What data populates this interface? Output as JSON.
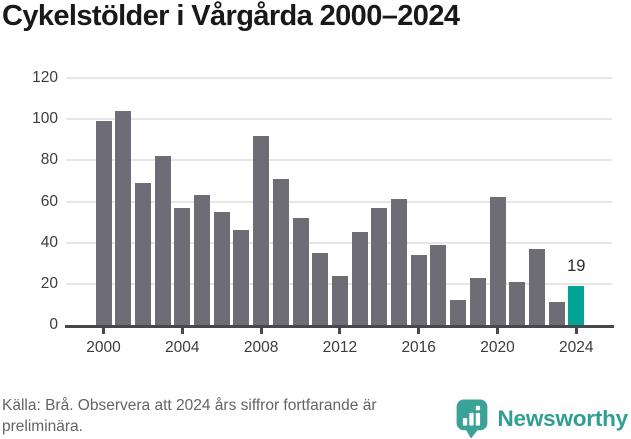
{
  "title": "Cykelstölder i Vårgårda 2000–2024",
  "chart_data": {
    "type": "bar",
    "title": "Cykelstölder i Vårgårda 2000–2024",
    "x": [
      2000,
      2001,
      2002,
      2003,
      2004,
      2005,
      2006,
      2007,
      2008,
      2009,
      2010,
      2011,
      2012,
      2013,
      2014,
      2015,
      2016,
      2017,
      2018,
      2019,
      2020,
      2021,
      2022,
      2023,
      2024
    ],
    "values": [
      99,
      104,
      69,
      82,
      57,
      63,
      55,
      46,
      92,
      71,
      52,
      35,
      24,
      45,
      57,
      61,
      34,
      39,
      12,
      23,
      62,
      21,
      37,
      11,
      19
    ],
    "ylim": [
      0,
      120
    ],
    "yticks": [
      0,
      20,
      40,
      60,
      80,
      100,
      120
    ],
    "xticks": [
      2000,
      2004,
      2008,
      2012,
      2016,
      2020,
      2024
    ],
    "grid": true,
    "legend": "none",
    "bar_color": "#6e6c74",
    "highlight_color": "#00a496",
    "highlight_index": 24,
    "annotations": [
      {
        "index": 24,
        "text": "19"
      }
    ],
    "xlabel": "",
    "ylabel": ""
  },
  "footer": {
    "source_line1": "Källa: Brå. Observera att 2024 års siffror fortfarande är",
    "source_line2": "preliminära.",
    "brand": "Newsworthy",
    "brand_color": "#3aa296"
  }
}
